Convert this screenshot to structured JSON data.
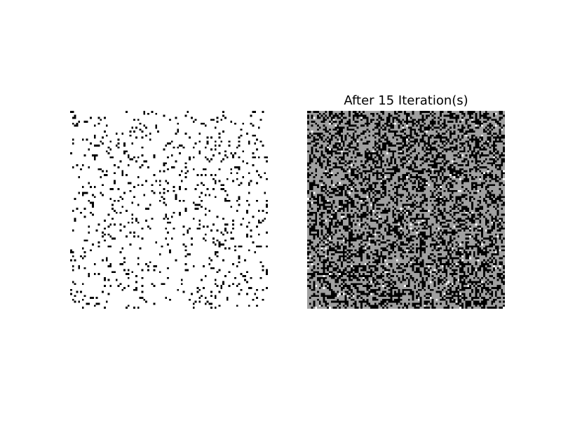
{
  "figure": {
    "background": "#ffffff"
  },
  "chart_data": [
    {
      "type": "heatmap",
      "title": "",
      "grid": false,
      "axes_visible": false,
      "grid_size": [
        100,
        100
      ],
      "colormap": {
        "dead": "#ffffff",
        "alive": "#000000"
      },
      "alive_density": 0.08,
      "seed": 7
    },
    {
      "type": "heatmap",
      "title": "After 15 Iteration(s)",
      "iterations": 15,
      "grid": false,
      "axes_visible": false,
      "grid_size": [
        100,
        100
      ],
      "colormap": {
        "dead": "#a0a0a0",
        "alive": "#000000",
        "sparse": "#ffffff"
      },
      "alive_density": 0.42,
      "sparse_density": 0.02,
      "seed": 23
    }
  ]
}
